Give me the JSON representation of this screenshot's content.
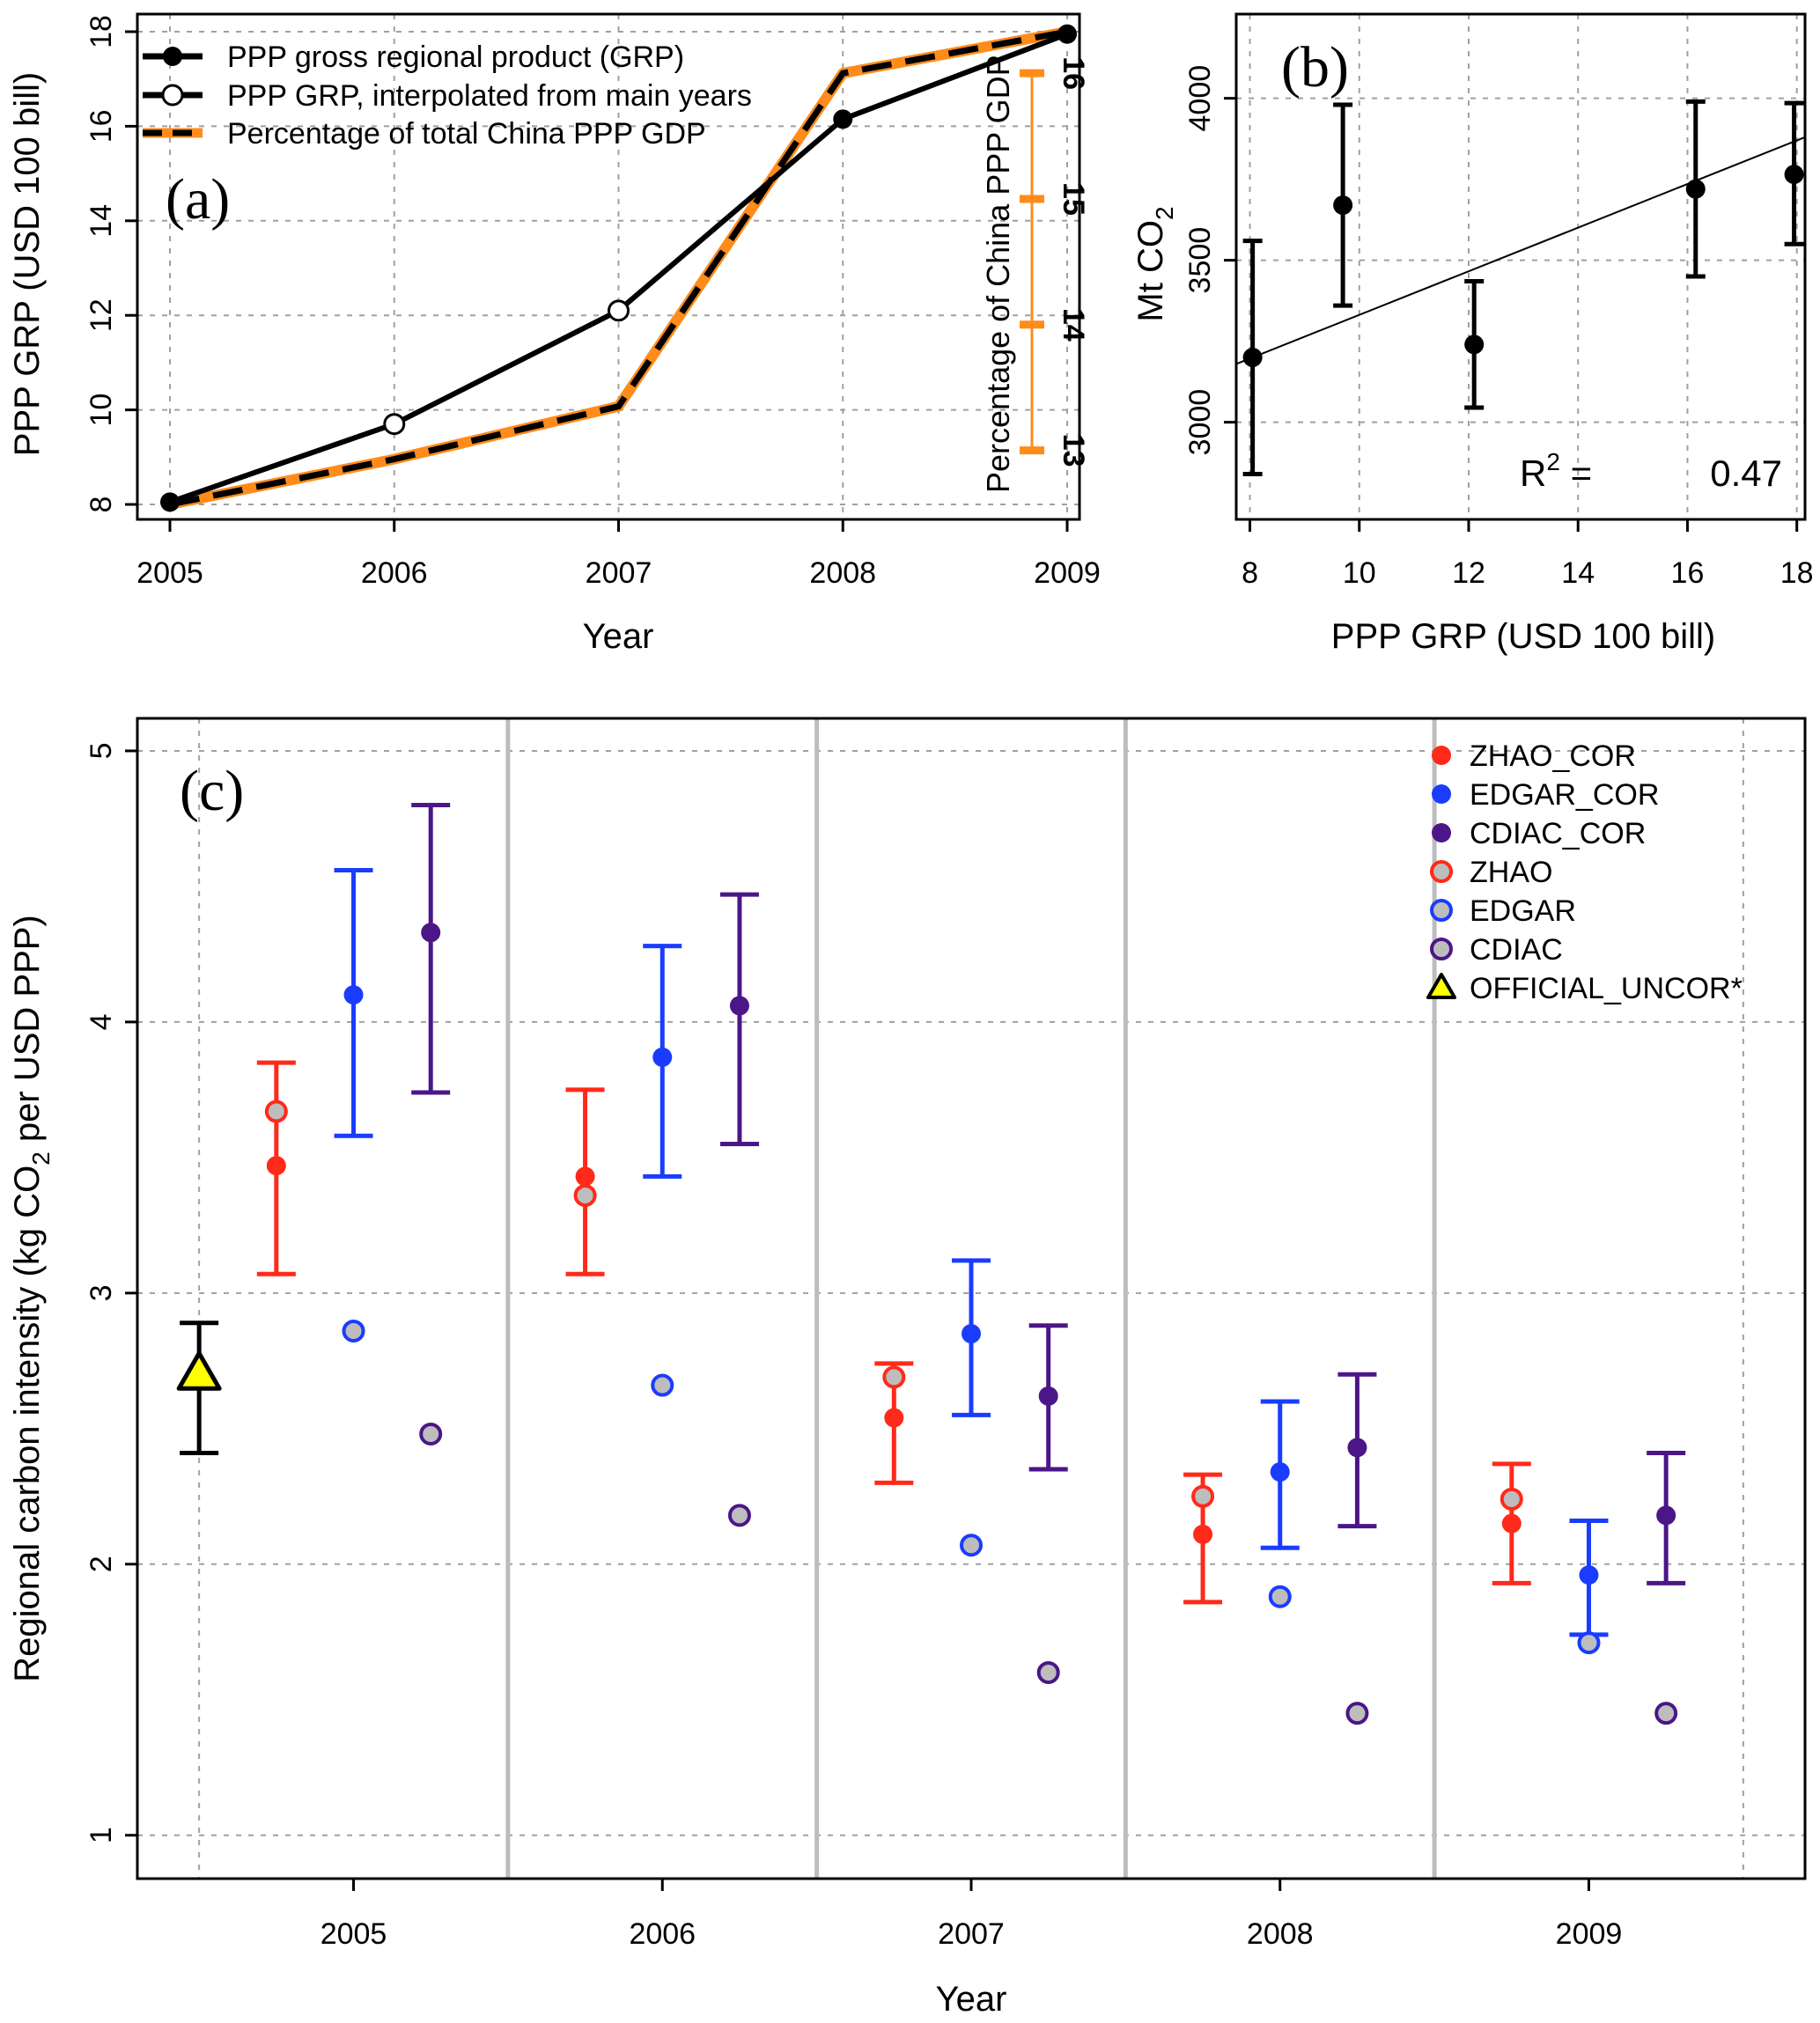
{
  "chart_data": [
    {
      "id": "a",
      "type": "line",
      "panel_label": "(a)",
      "xlabel": "Year",
      "ylabel": "PPP GRP (USD 100 bill)",
      "y2label": "Percentage of China PPP GDP",
      "x": [
        2005,
        2006,
        2007,
        2008,
        2009
      ],
      "x_ticks": [
        "2005",
        "2006",
        "2007",
        "2008",
        "2009"
      ],
      "y_ticks": [
        "8",
        "10",
        "12",
        "14",
        "16",
        "18"
      ],
      "y2_ticks": [
        "13",
        "14",
        "15",
        "16"
      ],
      "xlim": [
        2005,
        2009
      ],
      "ylim": [
        8,
        18
      ],
      "y2lim": [
        12.57,
        16.33
      ],
      "series": [
        {
          "name": "PPP  gross regional product (GRP)",
          "marker": "filled-circle",
          "x": [
            2005,
            2008,
            2009
          ],
          "values": [
            8.05,
            16.15,
            17.95
          ],
          "line_x": [
            2005,
            2006,
            2007,
            2008,
            2009
          ],
          "line_values": [
            8.05,
            9.7,
            12.1,
            16.15,
            17.95
          ]
        },
        {
          "name": "PPP GRP, interpolated from main years",
          "marker": "open-circle",
          "x": [
            2006,
            2007
          ],
          "values": [
            9.7,
            12.1
          ]
        },
        {
          "name": "Percentage of total China PPP GDP",
          "marker": "dashed-orange",
          "axis": "right",
          "x": [
            2005,
            2006,
            2007,
            2008,
            2009
          ],
          "values": [
            12.57,
            12.93,
            13.35,
            16.0,
            16.33
          ]
        }
      ]
    },
    {
      "id": "b",
      "type": "scatter",
      "panel_label": "(b)",
      "xlabel": "PPP GRP (USD 100 bill)",
      "ylabel": "Mt CO",
      "ylabel_sub": "2",
      "x_ticks": [
        "8",
        "10",
        "12",
        "14",
        "16",
        "18"
      ],
      "y_ticks": [
        "3000",
        "3500",
        "4000"
      ],
      "xlim": [
        7.75,
        18.15
      ],
      "ylim": [
        2700,
        4260
      ],
      "points": [
        {
          "x": 8.05,
          "y": 3200,
          "low": 2840,
          "high": 3560
        },
        {
          "x": 9.7,
          "y": 3670,
          "low": 3360,
          "high": 3980
        },
        {
          "x": 12.1,
          "y": 3240,
          "low": 3045,
          "high": 3435
        },
        {
          "x": 16.15,
          "y": 3720,
          "low": 3450,
          "high": 3990
        },
        {
          "x": 17.95,
          "y": 3765,
          "low": 3550,
          "high": 3985
        }
      ],
      "fit_line": {
        "x": [
          7.75,
          18.15
        ],
        "y": [
          3180,
          3880
        ]
      },
      "r2_label": "R",
      "r2_sup": "2",
      "r2_eq": " = ",
      "r2_value": "0.47"
    },
    {
      "id": "c",
      "type": "scatter",
      "panel_label": "(c)",
      "xlabel": "Year",
      "ylabel_parts": [
        "Regional carbon intensity (kg CO",
        "2",
        " per USD PPP)"
      ],
      "x_ticks": [
        "2005",
        "2006",
        "2007",
        "2008",
        "2009"
      ],
      "y_ticks": [
        "1",
        "2",
        "3",
        "4",
        "5"
      ],
      "xlim": [
        2004.3,
        2009.7
      ],
      "ylim": [
        0.84,
        5.12
      ],
      "colors": {
        "ZHAO": "#ff2a1a",
        "EDGAR": "#1a3cff",
        "CDIAC": "#4b1688",
        "OFFICIAL": "#ffff00",
        "hollow_fill": "#bdbdbd"
      },
      "legend": [
        {
          "label": "ZHAO_COR",
          "key": "ZHAO",
          "style": "filled"
        },
        {
          "label": "EDGAR_COR",
          "key": "EDGAR",
          "style": "filled"
        },
        {
          "label": "CDIAC_COR",
          "key": "CDIAC",
          "style": "filled"
        },
        {
          "label": "ZHAO",
          "key": "ZHAO",
          "style": "hollow"
        },
        {
          "label": "EDGAR",
          "key": "EDGAR",
          "style": "hollow"
        },
        {
          "label": "CDIAC",
          "key": "CDIAC",
          "style": "hollow"
        },
        {
          "label": "OFFICIAL_UNCOR*",
          "key": "OFFICIAL",
          "style": "triangle"
        }
      ],
      "official": {
        "x": 2004.5,
        "y": 2.7,
        "low": 2.41,
        "high": 2.89
      },
      "groups": [
        {
          "year": 2005,
          "ZHAO_COR": [
            3.47,
            3.07,
            3.85
          ],
          "ZHAO": 3.67,
          "EDGAR_COR": [
            4.1,
            3.58,
            4.56
          ],
          "EDGAR": 2.86,
          "CDIAC_COR": [
            4.33,
            3.74,
            4.8
          ],
          "CDIAC": 2.48
        },
        {
          "year": 2006,
          "ZHAO_COR": [
            3.43,
            3.07,
            3.75
          ],
          "ZHAO": 3.36,
          "EDGAR_COR": [
            3.87,
            3.43,
            4.28
          ],
          "EDGAR": 2.66,
          "CDIAC_COR": [
            4.06,
            3.55,
            4.47
          ],
          "CDIAC": 2.18
        },
        {
          "year": 2007,
          "ZHAO_COR": [
            2.54,
            2.3,
            2.74
          ],
          "ZHAO": 2.69,
          "EDGAR_COR": [
            2.85,
            2.55,
            3.12
          ],
          "EDGAR": 2.07,
          "CDIAC_COR": [
            2.62,
            2.35,
            2.88
          ],
          "CDIAC": 1.6
        },
        {
          "year": 2008,
          "ZHAO_COR": [
            2.11,
            1.86,
            2.33
          ],
          "ZHAO": 2.25,
          "EDGAR_COR": [
            2.34,
            2.06,
            2.6
          ],
          "EDGAR": 1.88,
          "CDIAC_COR": [
            2.43,
            2.14,
            2.7
          ],
          "CDIAC": 1.45
        },
        {
          "year": 2009,
          "ZHAO_COR": [
            2.15,
            1.93,
            2.37
          ],
          "ZHAO": 2.24,
          "EDGAR_COR": [
            1.96,
            1.74,
            2.16
          ],
          "EDGAR": 1.71,
          "CDIAC_COR": [
            2.18,
            1.93,
            2.41
          ],
          "CDIAC": 1.45
        }
      ]
    }
  ]
}
